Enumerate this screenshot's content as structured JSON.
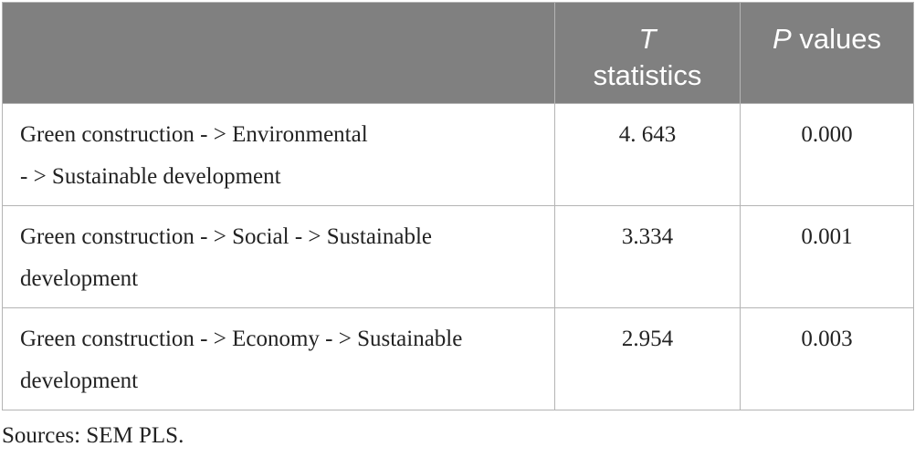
{
  "table": {
    "headers": [
      {
        "italic": "",
        "rest": ""
      },
      {
        "italic": "T",
        "rest": "statistics"
      },
      {
        "italic": "P",
        "rest": " values"
      }
    ],
    "rows": [
      {
        "effect_line1": "Green construction - > Environmental",
        "effect_line2": "- > Sustainable development",
        "t": "4. 643",
        "p": "0.000"
      },
      {
        "effect_line1": "Green construction - > Social - > Sustainable",
        "effect_line2": "development",
        "t": "3.334",
        "p": "0.001"
      },
      {
        "effect_line1": "Green construction - > Economy - > Sustainable",
        "effect_line2": "development",
        "t": "2.954",
        "p": "0.003"
      }
    ]
  },
  "footer": {
    "source": "Sources: SEM PLS."
  },
  "colors": {
    "header_bg": "#808080",
    "header_text": "#ffffff",
    "border": "#b4b4b4",
    "body_text": "#222222"
  }
}
